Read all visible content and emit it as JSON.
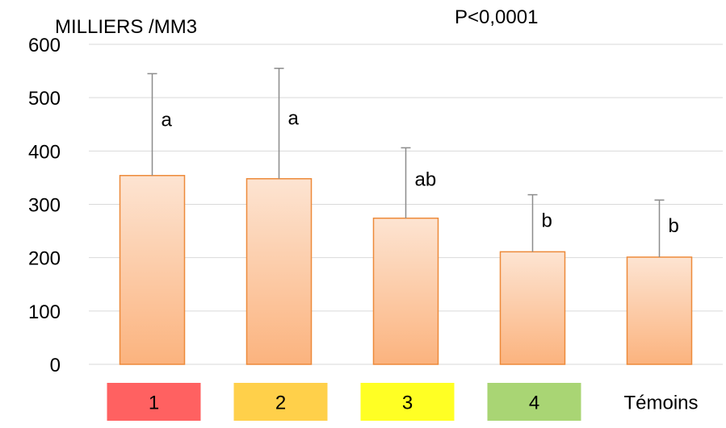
{
  "chart_data": {
    "type": "bar",
    "ylabel": "MILLIERS /MM3",
    "annotation": "P<0,0001",
    "categories": [
      "1",
      "2",
      "3",
      "4",
      "Témoins"
    ],
    "category_colors": [
      "#ff6161",
      "#ffd04a",
      "#ffff24",
      "#a9d574",
      "#ffffff"
    ],
    "values": [
      354,
      348,
      274,
      211,
      201
    ],
    "error_upper": [
      545,
      555,
      406,
      318,
      308
    ],
    "significance_labels": [
      "a",
      "a",
      "ab",
      "b",
      "b"
    ],
    "ylim": [
      0,
      600
    ],
    "yticks": [
      0,
      100,
      200,
      300,
      400,
      500,
      600
    ],
    "grid": true,
    "bar_fill_top": "#fde4d2",
    "bar_fill_bottom": "#fbb37e",
    "bar_stroke": "#ed8a3a",
    "error_bar_color": "#8c8c8c"
  }
}
